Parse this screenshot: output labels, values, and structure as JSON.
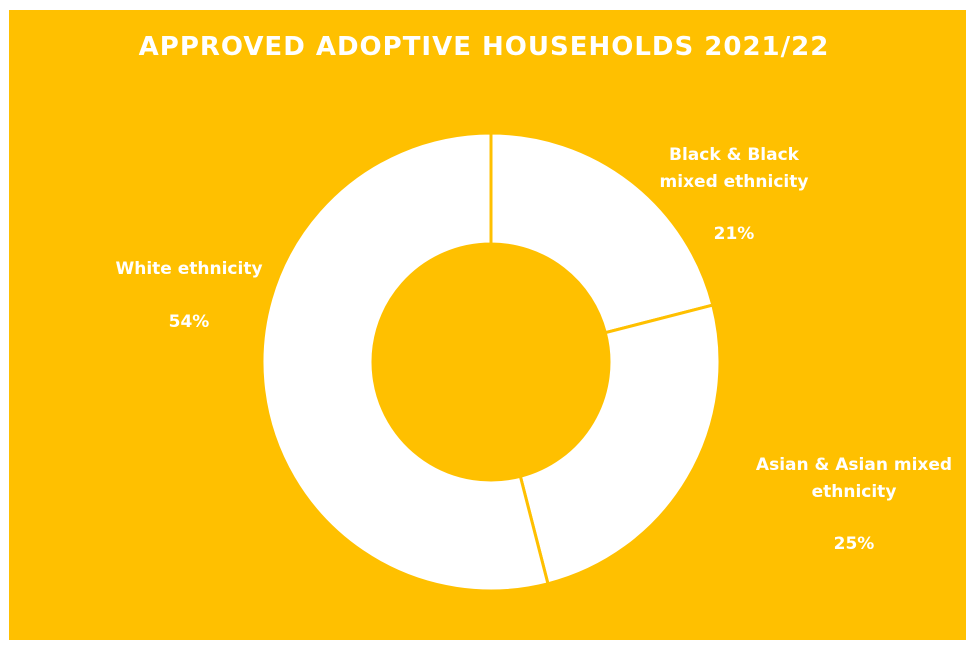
{
  "chart_data": {
    "type": "pie",
    "variant": "donut",
    "title": "APPROVED ADOPTIVE HOUSEHOLDS 2021/22",
    "slices": [
      {
        "label": "Black & Black\nmixed ethnicity",
        "value": 21,
        "value_label": "21%",
        "color": "#FFFFFF"
      },
      {
        "label": "Asian & Asian mixed\nethnicity",
        "value": 25,
        "value_label": "25%",
        "color": "#FFFFFF"
      },
      {
        "label": "White ethnicity",
        "value": 54,
        "value_label": "54%",
        "color": "#FFFFFF"
      }
    ],
    "legend": "none",
    "start_angle_deg": 0,
    "direction": "clockwise"
  },
  "colors": {
    "background": "#FFC000",
    "slice_fill": "#FFFFFF",
    "slice_border": "#FFC000",
    "text": "#FFFFFF"
  }
}
